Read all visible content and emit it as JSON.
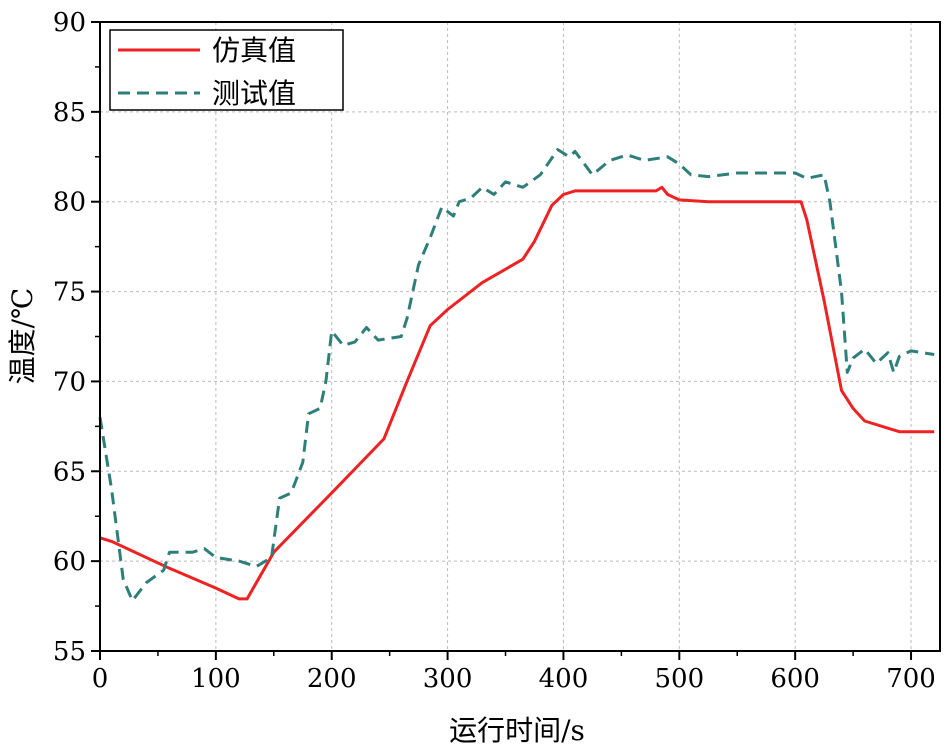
{
  "chart_data": {
    "type": "line",
    "title": "",
    "xlabel": "运行时间/s",
    "ylabel": "温度/℃",
    "xlim": [
      0,
      725
    ],
    "ylim": [
      55,
      90
    ],
    "xticks": [
      0,
      100,
      200,
      300,
      400,
      500,
      600,
      700
    ],
    "yticks": [
      55,
      60,
      65,
      70,
      75,
      80,
      85,
      90
    ],
    "grid": true,
    "legend_position": "top-left",
    "series": [
      {
        "name": "仿真值",
        "color": "#ee2222",
        "style": "solid",
        "x": [
          0,
          10,
          60,
          100,
          120,
          127,
          150,
          200,
          245,
          265,
          285,
          300,
          330,
          365,
          375,
          390,
          400,
          410,
          480,
          485,
          490,
          500,
          525,
          600,
          605,
          610,
          625,
          640,
          650,
          660,
          680,
          690,
          720
        ],
        "y": [
          61.3,
          61.1,
          59.6,
          58.5,
          57.9,
          57.9,
          60.5,
          63.8,
          66.8,
          70.0,
          73.1,
          74.0,
          75.5,
          76.8,
          77.8,
          79.8,
          80.4,
          80.6,
          80.6,
          80.8,
          80.4,
          80.1,
          80.0,
          80.0,
          80.0,
          79.0,
          74.5,
          69.5,
          68.5,
          67.8,
          67.4,
          67.2,
          67.2
        ]
      },
      {
        "name": "测试值",
        "color": "#2e7f7a",
        "style": "dashed",
        "x": [
          0,
          10,
          20,
          28,
          40,
          55,
          60,
          80,
          90,
          100,
          120,
          135,
          148,
          155,
          165,
          175,
          180,
          190,
          195,
          200,
          210,
          220,
          230,
          240,
          260,
          265,
          275,
          285,
          295,
          305,
          310,
          320,
          330,
          340,
          350,
          365,
          380,
          395,
          405,
          410,
          425,
          440,
          455,
          470,
          490,
          500,
          510,
          525,
          550,
          575,
          600,
          610,
          625,
          630,
          640,
          645,
          650,
          660,
          670,
          680,
          685,
          690,
          700,
          720
        ],
        "y": [
          68.0,
          64.0,
          59.0,
          57.8,
          58.8,
          59.5,
          60.5,
          60.5,
          60.7,
          60.2,
          60.0,
          59.7,
          60.2,
          63.5,
          63.8,
          65.5,
          68.2,
          68.5,
          70.0,
          72.8,
          72.0,
          72.2,
          73.0,
          72.3,
          72.5,
          73.5,
          76.5,
          78.0,
          79.7,
          79.2,
          80.0,
          80.2,
          80.8,
          80.4,
          81.1,
          80.8,
          81.5,
          82.9,
          82.5,
          82.8,
          81.5,
          82.3,
          82.6,
          82.3,
          82.5,
          82.1,
          81.5,
          81.4,
          81.6,
          81.6,
          81.6,
          81.3,
          81.5,
          80.0,
          75.0,
          70.5,
          71.3,
          71.8,
          71.0,
          71.6,
          70.5,
          71.4,
          71.7,
          71.5
        ]
      }
    ]
  }
}
